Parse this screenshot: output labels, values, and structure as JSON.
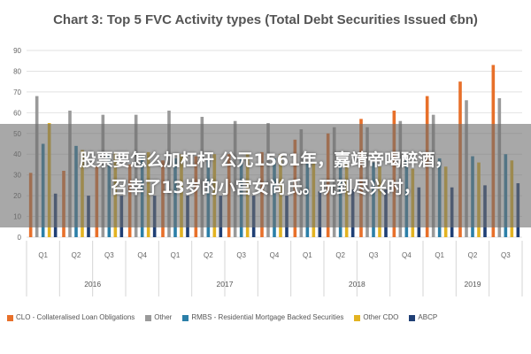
{
  "chart_data": {
    "type": "bar",
    "title": "Chart 3: Top 5 FVC Activity types (Total Debt Securities Issued €bn)",
    "xlabel": "",
    "ylabel": "",
    "ylim": [
      0,
      90
    ],
    "yticks": [
      0,
      10,
      20,
      30,
      40,
      50,
      60,
      70,
      80,
      90
    ],
    "grid": true,
    "legend_position": "bottom",
    "categories": [
      "Q1",
      "Q2",
      "Q3",
      "Q4",
      "Q1",
      "Q2",
      "Q3",
      "Q4",
      "Q1",
      "Q2",
      "Q3",
      "Q4",
      "Q1",
      "Q2",
      "Q3"
    ],
    "years": [
      {
        "label": "2016",
        "count": 4
      },
      {
        "label": "2017",
        "count": 4
      },
      {
        "label": "2018",
        "count": 4
      },
      {
        "label": "2019",
        "count": 3
      }
    ],
    "series": [
      {
        "name": "CLO - Collateralised Loan Obligations",
        "color": "#e8702a",
        "values": [
          31,
          32,
          34,
          35,
          37,
          39,
          40,
          41,
          47,
          50,
          57,
          61,
          68,
          75,
          83
        ]
      },
      {
        "name": "Other",
        "color": "#9a9a9a",
        "values": [
          68,
          61,
          59,
          59,
          61,
          58,
          56,
          55,
          52,
          53,
          53,
          56,
          59,
          66,
          67
        ]
      },
      {
        "name": "RMBS - Residential Mortgage Backed Securities",
        "color": "#2b7fa8",
        "values": [
          45,
          44,
          40,
          39,
          38,
          38,
          38,
          38,
          36,
          36,
          36,
          37,
          38,
          39,
          40
        ]
      },
      {
        "name": "Other CDO",
        "color": "#e3b321",
        "values": [
          55,
          42,
          41,
          41,
          40,
          40,
          40,
          40,
          36,
          35,
          34,
          33,
          34,
          36,
          37
        ]
      },
      {
        "name": "ABCP",
        "color": "#1f3f75",
        "values": [
          21,
          20,
          20,
          20,
          20,
          20,
          20,
          20,
          22,
          23,
          23,
          24,
          24,
          25,
          26
        ]
      }
    ]
  },
  "overlay": {
    "line1": "股票要怎么加杠杆 公元1561年，嘉靖帝喝醉酒，",
    "line2": "召幸了13岁的小宫女尚氏。玩到尽兴时，"
  }
}
